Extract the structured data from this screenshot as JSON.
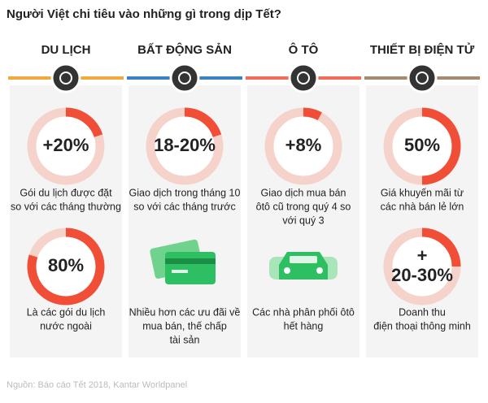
{
  "title": "Người Việt chi tiêu vào những gì trong dịp Tết?",
  "source": "Nguồn: Báo cáo Tết 2018, Kantar Worldpanel",
  "columns": [
    {
      "heading": "DU LỊCH",
      "color": "#f2a93b",
      "items": [
        {
          "stat": [
            "+20%"
          ],
          "ring": 20,
          "text": [
            "Gói du lịch được đặt",
            "so với các tháng thường"
          ]
        },
        {
          "stat": [
            "80%"
          ],
          "ring": 80,
          "text": [
            "Là các gói du lịch",
            "nước ngoài"
          ]
        }
      ]
    },
    {
      "heading": "BẤT ĐỘNG SẢN",
      "color": "#3a82c4",
      "items": [
        {
          "stat": [
            "18-20%"
          ],
          "ring": 20,
          "text": [
            "Giao dịch trong tháng 10",
            "so với các tháng trước"
          ]
        },
        {
          "icon": "card",
          "text": [
            "Nhiều hơn các ưu đãi về",
            "mua bán, thế chấp",
            "tài sản"
          ]
        }
      ]
    },
    {
      "heading": "Ô TÔ",
      "color": "#f26b5b",
      "items": [
        {
          "stat": [
            "+8%"
          ],
          "ring": 8,
          "text": [
            "Giao dịch mua bán",
            "ôtô cũ trong quý 4 so",
            "với quý 3"
          ]
        },
        {
          "icon": "car",
          "text": [
            "Các nhà phân phối ôtô",
            "hết hàng"
          ]
        }
      ]
    },
    {
      "heading": "THIẾT BỊ ĐIỆN TỬ",
      "color": "#a58b6a",
      "items": [
        {
          "stat": [
            "50%"
          ],
          "ring": 50,
          "text": [
            "Giá khuyến mãi từ",
            "các nhà bán lẻ lớn"
          ]
        },
        {
          "stat": [
            "+",
            "20-30%"
          ],
          "ring": 25,
          "text": [
            "Doanh thu",
            "điện thoại thông minh"
          ]
        }
      ]
    }
  ]
}
